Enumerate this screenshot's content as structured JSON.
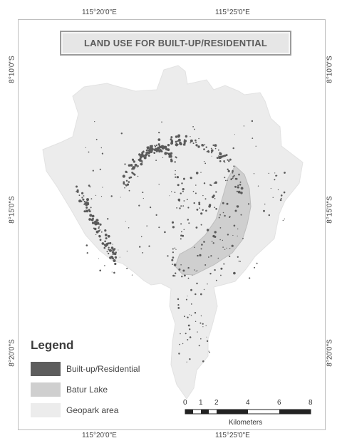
{
  "map": {
    "title": "LAND USE FOR BUILT-UP/RESIDENTIAL",
    "longitude_labels": [
      "115°20'0\"E",
      "115°25'0\"E"
    ],
    "latitude_labels": [
      "8°10'0\"S",
      "8°15'0\"S",
      "8°20'0\"S"
    ],
    "colors": {
      "built_up": "#5a5a5a",
      "lake": "#cfcfcf",
      "geopark": "#ececec"
    }
  },
  "legend": {
    "title": "Legend",
    "items": [
      {
        "label": "Built-up/Residential",
        "color": "#5d5d5d"
      },
      {
        "label": "Batur Lake",
        "color": "#cfcfcf"
      },
      {
        "label": "Geopark area",
        "color": "#ececec"
      }
    ]
  },
  "scale_bar": {
    "ticks": [
      "0",
      "1",
      "2",
      "4",
      "6",
      "8"
    ],
    "unit": "Kilometers"
  }
}
